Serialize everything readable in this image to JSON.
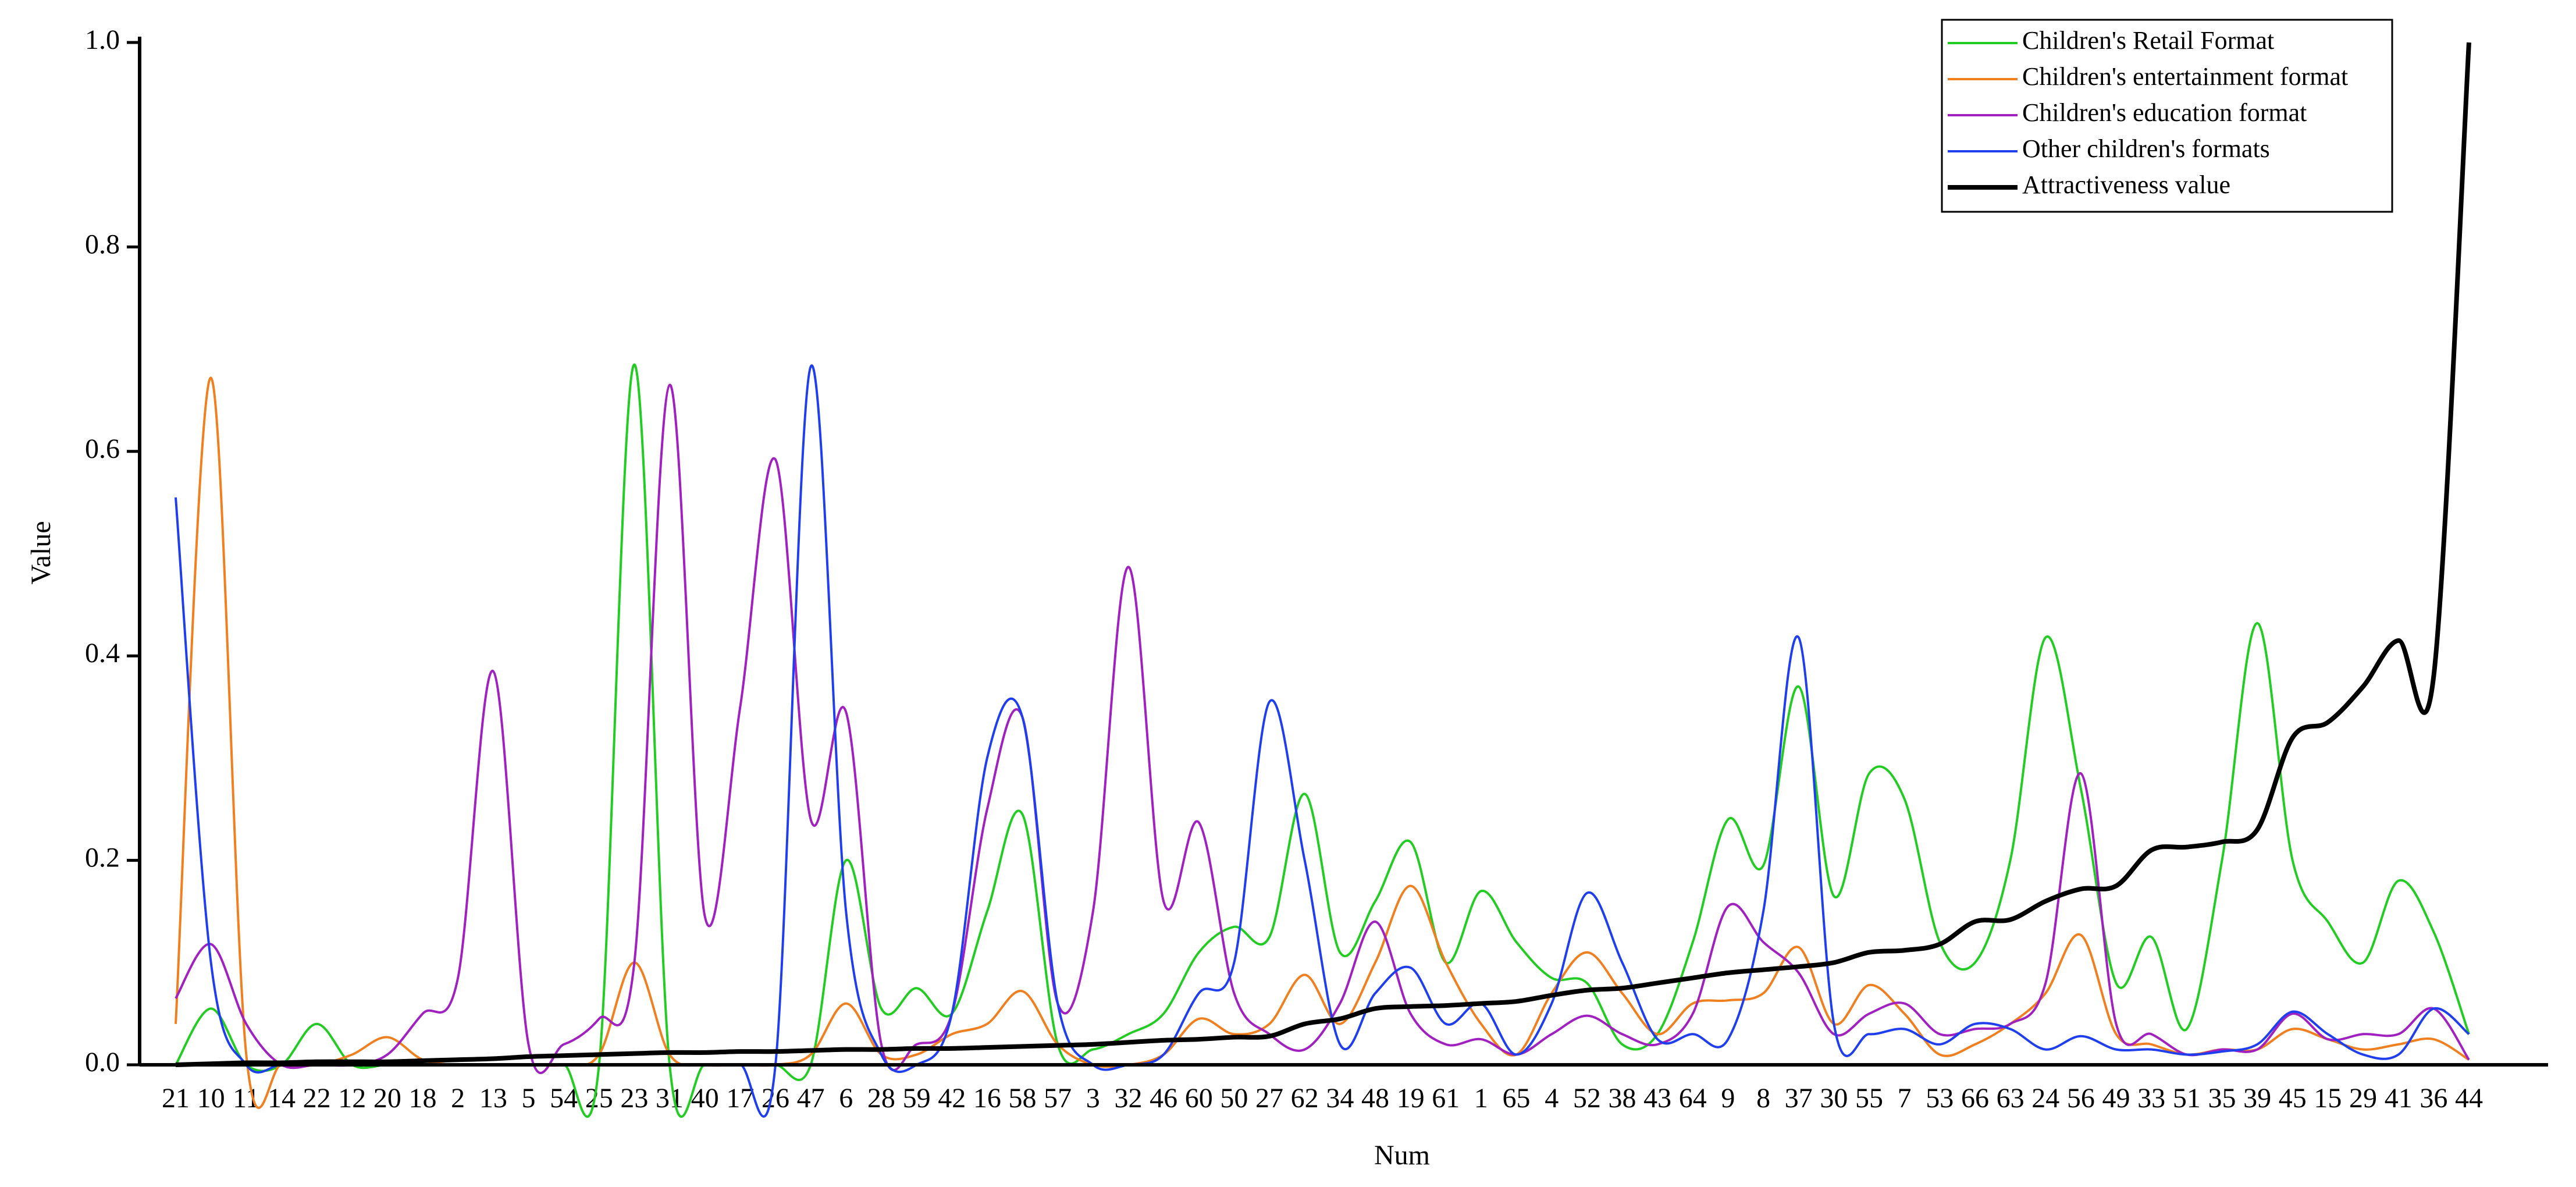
{
  "chart_data": {
    "type": "line",
    "x_label": "Num",
    "y_label": "Value",
    "categories": [
      "21",
      "10",
      "11",
      "14",
      "22",
      "12",
      "20",
      "18",
      "2",
      "13",
      "5",
      "54",
      "25",
      "23",
      "31",
      "40",
      "17",
      "26",
      "47",
      "6",
      "28",
      "59",
      "42",
      "16",
      "58",
      "57",
      "3",
      "32",
      "46",
      "60",
      "50",
      "27",
      "62",
      "34",
      "48",
      "19",
      "61",
      "1",
      "65",
      "4",
      "52",
      "38",
      "43",
      "64",
      "9",
      "8",
      "37",
      "30",
      "55",
      "7",
      "53",
      "66",
      "63",
      "24",
      "56",
      "49",
      "33",
      "51",
      "35",
      "39",
      "45",
      "15",
      "29",
      "41",
      "36",
      "44"
    ],
    "ylim": [
      0,
      1
    ],
    "yticks": [
      {
        "value": 0,
        "label": "0.0"
      },
      {
        "value": 0.2,
        "label": "0.2"
      },
      {
        "value": 0.4,
        "label": "0.4"
      },
      {
        "value": 0.6,
        "label": "0.6"
      },
      {
        "value": 0.8,
        "label": "0.8"
      },
      {
        "value": 1,
        "label": "1.0"
      }
    ],
    "legend": "upper right",
    "series": [
      {
        "name": "Children's Retail Format",
        "color": "#22cc22",
        "values": [
          0,
          0.055,
          0,
          0,
          0.04,
          0,
          0,
          0,
          0,
          0,
          0,
          0,
          0,
          0.685,
          0,
          0,
          0,
          0,
          0,
          0.2,
          0.055,
          0.075,
          0.05,
          0.15,
          0.245,
          0.02,
          0.015,
          0.03,
          0.05,
          0.11,
          0.135,
          0.125,
          0.265,
          0.11,
          0.16,
          0.218,
          0.1,
          0.17,
          0.12,
          0.085,
          0.08,
          0.02,
          0.03,
          0.12,
          0.24,
          0.195,
          0.37,
          0.165,
          0.285,
          0.26,
          0.12,
          0.1,
          0.2,
          0.418,
          0.27,
          0.08,
          0.125,
          0.035,
          0.2,
          0.432,
          0.2,
          0.14,
          0.1,
          0.18,
          0.13,
          0.03
        ]
      },
      {
        "name": "Children's entertainment format",
        "color": "#f07f20",
        "values": [
          0.04,
          0.672,
          0.01,
          0,
          0,
          0.01,
          0.027,
          0.005,
          0,
          0,
          0,
          0,
          0.01,
          0.1,
          0.01,
          0,
          0,
          0,
          0.01,
          0.06,
          0.01,
          0.01,
          0.03,
          0.04,
          0.072,
          0.02,
          0,
          0,
          0.01,
          0.045,
          0.03,
          0.04,
          0.088,
          0.04,
          0.1,
          0.175,
          0.1,
          0.04,
          0.01,
          0.07,
          0.11,
          0.07,
          0.03,
          0.06,
          0.063,
          0.07,
          0.115,
          0.04,
          0.078,
          0.05,
          0.01,
          0.02,
          0.04,
          0.07,
          0.127,
          0.03,
          0.02,
          0.01,
          0.015,
          0.015,
          0.035,
          0.025,
          0.015,
          0.02,
          0.025,
          0.005
        ]
      },
      {
        "name": "Children's education format",
        "color": "#a020c0",
        "values": [
          0.065,
          0.118,
          0.04,
          0,
          0,
          0,
          0.01,
          0.05,
          0.085,
          0.385,
          0.02,
          0.02,
          0.045,
          0.1,
          0.665,
          0.145,
          0.35,
          0.592,
          0.24,
          0.345,
          0.02,
          0.02,
          0.05,
          0.25,
          0.34,
          0.06,
          0.15,
          0.487,
          0.16,
          0.237,
          0.07,
          0.03,
          0.015,
          0.06,
          0.14,
          0.05,
          0.02,
          0.025,
          0.01,
          0.03,
          0.048,
          0.03,
          0.02,
          0.05,
          0.155,
          0.12,
          0.09,
          0.03,
          0.05,
          0.06,
          0.03,
          0.035,
          0.04,
          0.08,
          0.285,
          0.04,
          0.03,
          0.01,
          0.015,
          0.015,
          0.05,
          0.025,
          0.03,
          0.03,
          0.055,
          0.005
        ]
      },
      {
        "name": "Other children's formats",
        "color": "#1f3fef",
        "values": [
          0.555,
          0.1,
          0,
          0,
          0,
          0,
          0,
          0,
          0,
          0,
          0,
          0,
          0,
          0,
          0,
          0,
          0,
          0,
          0.683,
          0.15,
          0.01,
          0,
          0.05,
          0.3,
          0.34,
          0.06,
          0,
          0,
          0.01,
          0.07,
          0.1,
          0.355,
          0.2,
          0.02,
          0.07,
          0.095,
          0.04,
          0.06,
          0.01,
          0.06,
          0.168,
          0.1,
          0.025,
          0.03,
          0.025,
          0.15,
          0.418,
          0.04,
          0.03,
          0.035,
          0.02,
          0.04,
          0.035,
          0.015,
          0.028,
          0.015,
          0.015,
          0.01,
          0.013,
          0.02,
          0.052,
          0.03,
          0.01,
          0.01,
          0.055,
          0.03
        ]
      },
      {
        "name": "Attractiveness value",
        "color": "#000000",
        "values": [
          0,
          0.001,
          0.002,
          0.002,
          0.003,
          0.003,
          0.003,
          0.004,
          0.005,
          0.006,
          0.008,
          0.009,
          0.01,
          0.011,
          0.012,
          0.012,
          0.013,
          0.013,
          0.014,
          0.015,
          0.015,
          0.016,
          0.016,
          0.017,
          0.018,
          0.019,
          0.02,
          0.022,
          0.024,
          0.025,
          0.027,
          0.028,
          0.04,
          0.045,
          0.055,
          0.057,
          0.058,
          0.06,
          0.062,
          0.068,
          0.073,
          0.075,
          0.08,
          0.085,
          0.09,
          0.093,
          0.096,
          0.1,
          0.11,
          0.112,
          0.118,
          0.14,
          0.142,
          0.16,
          0.172,
          0.175,
          0.21,
          0.213,
          0.218,
          0.23,
          0.32,
          0.335,
          0.37,
          0.415,
          0.38,
          1.0
        ]
      }
    ]
  }
}
